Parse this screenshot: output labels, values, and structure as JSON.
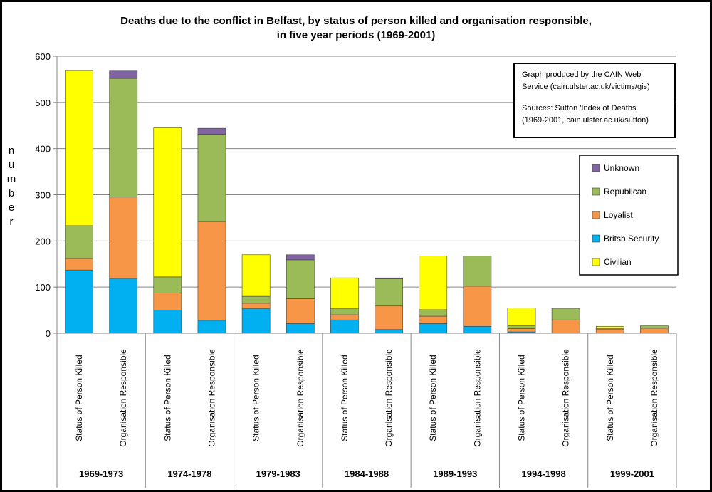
{
  "chart_data": {
    "type": "bar",
    "stacked": true,
    "title": "Deaths due to the conflict in Belfast, by status of person killed and organisation responsible,",
    "title_line2": "in five year periods (1969-2001)",
    "ylabel": "number",
    "ylim": [
      0,
      600
    ],
    "yticks": [
      "0",
      "100",
      "200",
      "300",
      "400",
      "500",
      "600"
    ],
    "grid": true,
    "legend_position": "right",
    "periods": [
      "1969-1973",
      "1974-1978",
      "1979-1983",
      "1984-1988",
      "1989-1993",
      "1994-1998",
      "1999-2001"
    ],
    "categories": [
      "Status of Person Killed",
      "Organisation Responsible",
      "Status of Person Killed",
      "Organisation Responsible",
      "Status of Person Killed",
      "Organisation Responsible",
      "Status of Person Killed",
      "Organisation Responsible",
      "Status of Person Killed",
      "Organisation Responsible",
      "Status of Person Killed",
      "Organisation Responsible",
      "Status of Person Killed",
      "Organisation Responsible"
    ],
    "series": [
      {
        "name": "Britsh Security",
        "color": "#00b0f0",
        "values": [
          137,
          119,
          50,
          28,
          53,
          21,
          29,
          8,
          21,
          15,
          3,
          0,
          1,
          0
        ]
      },
      {
        "name": "Loyalist",
        "color": "#f79646",
        "values": [
          25,
          176,
          37,
          214,
          12,
          54,
          11,
          51,
          16,
          87,
          7,
          29,
          8,
          11
        ]
      },
      {
        "name": "Republican",
        "color": "#9bbb59",
        "values": [
          71,
          257,
          35,
          189,
          15,
          84,
          13,
          59,
          14,
          65,
          6,
          25,
          2,
          5
        ]
      },
      {
        "name": "Civilian",
        "color": "#ffff00",
        "values": [
          336,
          0,
          323,
          0,
          90,
          0,
          67,
          0,
          116,
          0,
          39,
          0,
          4,
          0
        ]
      },
      {
        "name": "Unknown",
        "color": "#8064a2",
        "values": [
          0,
          16,
          0,
          13,
          0,
          11,
          0,
          2,
          0,
          0,
          0,
          0,
          0,
          0
        ]
      }
    ]
  },
  "legend_order": [
    "Unknown",
    "Republican",
    "Loyalist",
    "Britsh Security",
    "Civilian"
  ],
  "note": {
    "line1": "Graph produced by the CAIN Web",
    "line2": "Service (cain.ulster.ac.uk/victims/gis)",
    "line3": "Sources: Sutton 'Index of Deaths'",
    "line4": "(1969-2001, cain.ulster.ac.uk/sutton)"
  }
}
